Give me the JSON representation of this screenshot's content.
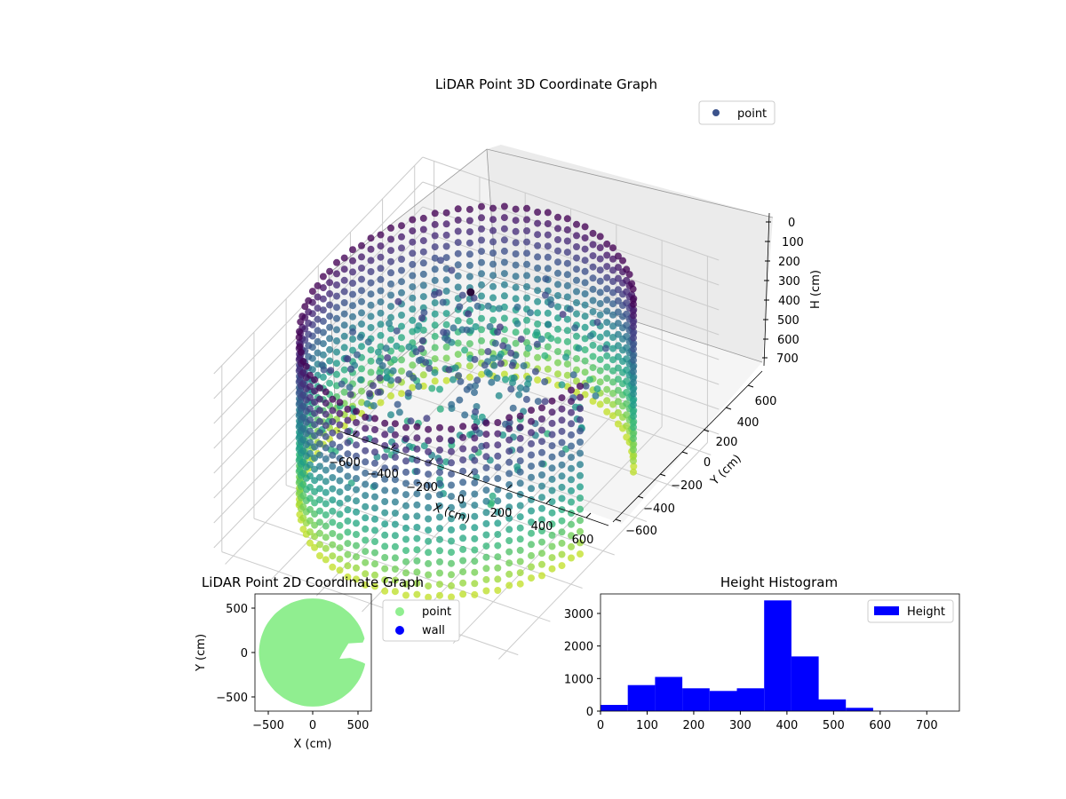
{
  "chart_data": [
    {
      "type": "scatter",
      "projection": "3d",
      "title": "LiDAR Point 3D Coordinate Graph",
      "xlabel": "X (cm)",
      "ylabel": "Y (cm)",
      "zlabel": "H (cm)",
      "xlim": [
        -650,
        650
      ],
      "ylim": [
        -650,
        650
      ],
      "zlim": [
        750,
        0
      ],
      "xticks": [
        "−600",
        "−400",
        "−200",
        "0",
        "200",
        "400",
        "600"
      ],
      "yticks": [
        "600",
        "400",
        "200",
        "0",
        "−200",
        "−400",
        "−600"
      ],
      "zticks": [
        "0",
        "100",
        "200",
        "300",
        "400",
        "500",
        "600",
        "700"
      ],
      "colormap": "viridis",
      "legend": {
        "position": "top-right",
        "label": "point",
        "color": "#3b528b"
      },
      "grid": true,
      "structure": {
        "ring_radius_cm": 600,
        "wall_height_cm": [
          0,
          750
        ],
        "gap_angle_deg": [
          -10,
          30
        ]
      }
    },
    {
      "type": "scatter",
      "title": "LiDAR Point 2D Coordinate Graph",
      "xlabel": "X (cm)",
      "ylabel": "Y (cm)",
      "xlim": [
        -650,
        650
      ],
      "ylim": [
        -650,
        650
      ],
      "xticks": [
        "−500",
        "0",
        "500"
      ],
      "yticks": [
        "500",
        "0",
        "−500"
      ],
      "series": [
        {
          "name": "point",
          "color": "#90ee90",
          "shape": "filled disc radius 600 with notch opening toward +X"
        },
        {
          "name": "wall",
          "color": "#0000ff"
        }
      ],
      "legend": {
        "position": "outside-right"
      }
    },
    {
      "type": "bar",
      "subtype": "histogram",
      "title": "Height Histogram",
      "xlim": [
        0,
        770
      ],
      "ylim": [
        0,
        3600
      ],
      "xticks": [
        "0",
        "100",
        "200",
        "300",
        "400",
        "500",
        "600",
        "700"
      ],
      "yticks": [
        "0",
        "1000",
        "2000",
        "3000"
      ],
      "bin_edges": [
        0,
        58.5,
        117,
        175.5,
        234,
        292.5,
        351,
        409.5,
        468,
        526.5,
        585,
        643.5,
        702,
        760.5
      ],
      "series": [
        {
          "name": "Height",
          "color": "#0000ff",
          "values": [
            190,
            800,
            1050,
            700,
            620,
            700,
            3400,
            1680,
            360,
            100,
            10,
            5,
            3
          ]
        }
      ],
      "legend": {
        "position": "top-right",
        "label": "Height"
      }
    }
  ]
}
